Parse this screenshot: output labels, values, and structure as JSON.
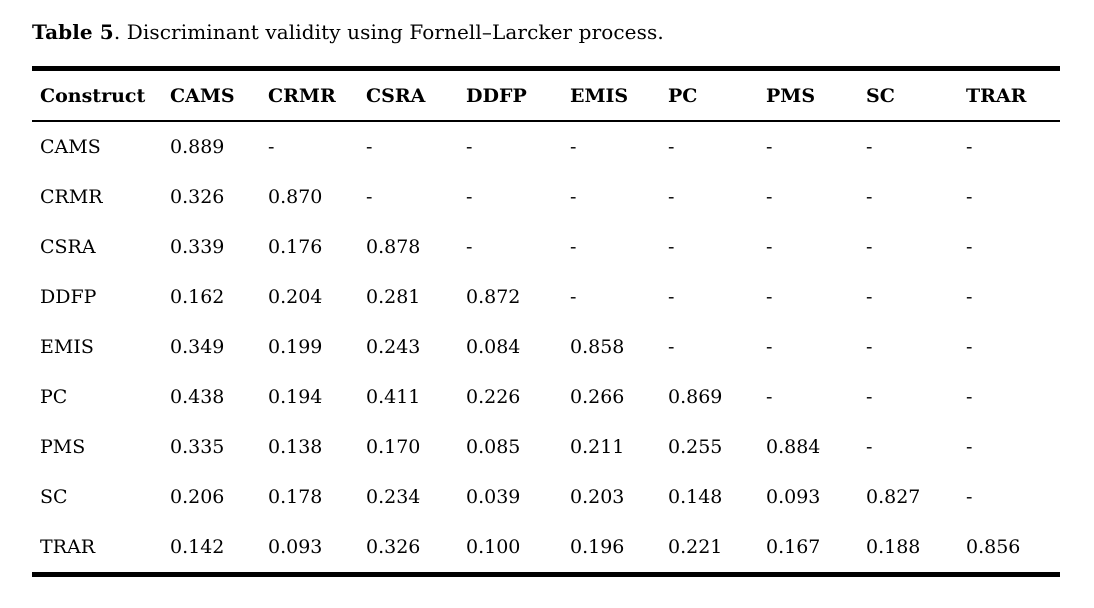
{
  "caption": {
    "label": "Table 5",
    "text": ". Discriminant validity using Fornell–Larcker process."
  },
  "table": {
    "columns": [
      "Construct",
      "CAMS",
      "CRMR",
      "CSRA",
      "DDFP",
      "EMIS",
      "PC",
      "PMS",
      "SC",
      "TRAR"
    ],
    "rows": [
      {
        "construct": "CAMS",
        "values": [
          "0.889",
          "-",
          "-",
          "-",
          "-",
          "-",
          "-",
          "-",
          "-"
        ]
      },
      {
        "construct": "CRMR",
        "values": [
          "0.326",
          "0.870",
          "-",
          "-",
          "-",
          "-",
          "-",
          "-",
          "-"
        ]
      },
      {
        "construct": "CSRA",
        "values": [
          "0.339",
          "0.176",
          "0.878",
          "-",
          "-",
          "-",
          "-",
          "-",
          "-"
        ]
      },
      {
        "construct": "DDFP",
        "values": [
          "0.162",
          "0.204",
          "0.281",
          "0.872",
          "-",
          "-",
          "-",
          "-",
          "-"
        ]
      },
      {
        "construct": "EMIS",
        "values": [
          "0.349",
          "0.199",
          "0.243",
          "0.084",
          "0.858",
          "-",
          "-",
          "-",
          "-"
        ]
      },
      {
        "construct": "PC",
        "values": [
          "0.438",
          "0.194",
          "0.411",
          "0.226",
          "0.266",
          "0.869",
          "-",
          "-",
          "-"
        ]
      },
      {
        "construct": "PMS",
        "values": [
          "0.335",
          "0.138",
          "0.170",
          "0.085",
          "0.211",
          "0.255",
          "0.884",
          "-",
          "-"
        ]
      },
      {
        "construct": "SC",
        "values": [
          "0.206",
          "0.178",
          "0.234",
          "0.039",
          "0.203",
          "0.148",
          "0.093",
          "0.827",
          "-"
        ]
      },
      {
        "construct": "TRAR",
        "values": [
          "0.142",
          "0.093",
          "0.326",
          "0.100",
          "0.196",
          "0.221",
          "0.167",
          "0.188",
          "0.856"
        ]
      }
    ]
  }
}
